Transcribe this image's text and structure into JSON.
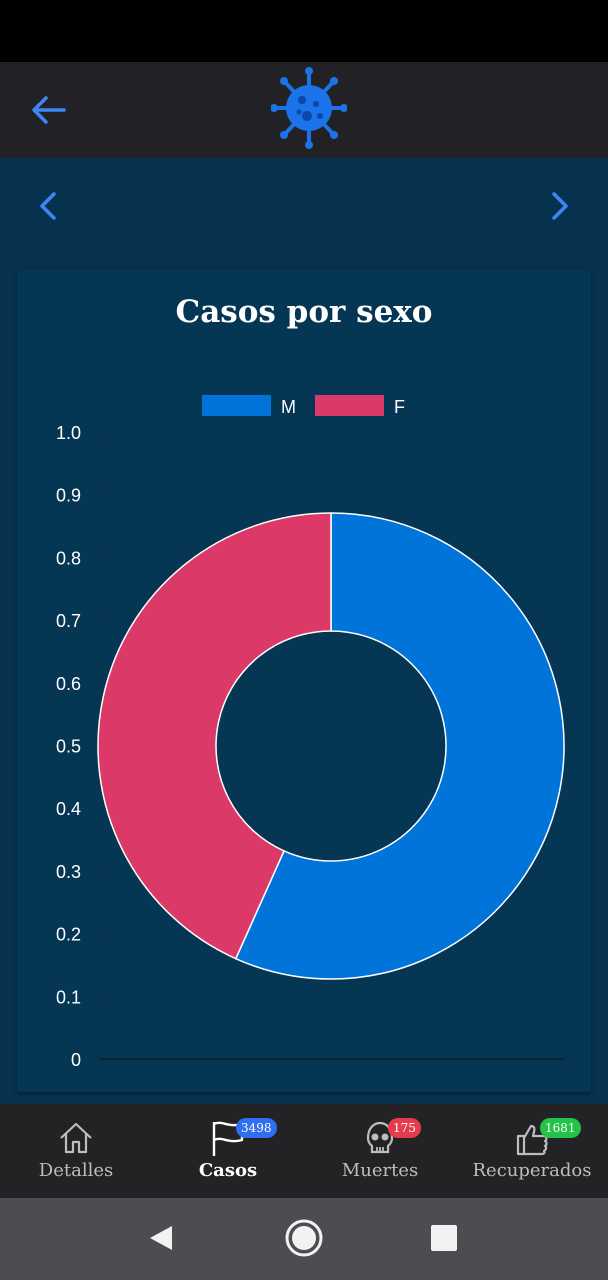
{
  "header": {
    "back_icon": "arrow-left-icon",
    "logo_icon": "virus-icon",
    "accent_color": "#1a73e8"
  },
  "navigation": {
    "prev_icon": "chevron-left-icon",
    "next_icon": "chevron-right-icon"
  },
  "chart_data": {
    "type": "pie",
    "title": "Casos por sexo",
    "series": [
      {
        "name": "M",
        "value": 0.567,
        "color": "#0074d9"
      },
      {
        "name": "F",
        "value": 0.433,
        "color": "#db3a69"
      }
    ],
    "legend": [
      "M",
      "F"
    ],
    "legend_placement": "top",
    "y_ticks": [
      "1.0",
      "0.9",
      "0.8",
      "0.7",
      "0.6",
      "0.5",
      "0.4",
      "0.3",
      "0.2",
      "0.1",
      "0"
    ],
    "ylim": [
      0,
      1
    ],
    "grid": true
  },
  "bottom_nav": {
    "items": [
      {
        "label": "Detalles",
        "icon": "home-icon",
        "badge": ""
      },
      {
        "label": "Casos",
        "icon": "flag-icon",
        "badge": "3498",
        "badge_color": "#2f6ff0"
      },
      {
        "label": "Muertes",
        "icon": "skull-icon",
        "badge": "175",
        "badge_color": "#e53b4d"
      },
      {
        "label": "Recuperados",
        "icon": "thumbs-up-icon",
        "badge": "1681",
        "badge_color": "#25c24a"
      }
    ],
    "active": "Casos"
  },
  "system_nav": {
    "back_icon": "triangle-back-icon",
    "home_icon": "circle-home-icon",
    "recents_icon": "square-recents-icon"
  }
}
